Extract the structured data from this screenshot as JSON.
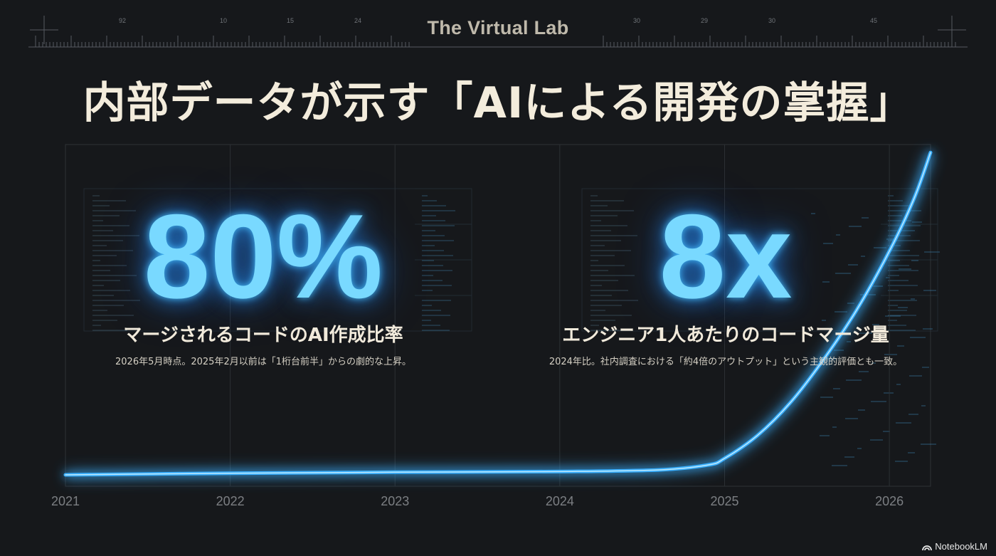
{
  "header": {
    "brand": "The Virtual Lab",
    "ruler_labels_left": [
      "92",
      "10",
      "15",
      "24"
    ],
    "ruler_labels_right": [
      "30",
      "29",
      "30",
      "45"
    ]
  },
  "headline": "内部データが示す「AIによる開発の掌握」",
  "stats": [
    {
      "value": "80%",
      "label": "マージされるコードのAI作成比率",
      "note": "2026年5月時点。2025年2月以前は「1桁台前半」からの劇的な上昇。"
    },
    {
      "value": "8x",
      "label": "エンジニア1人あたりのコードマージ量",
      "note": "2024年比。社内調査における「約4倍のアウトプット」という主観的評価とも一致。"
    }
  ],
  "chart_data": {
    "type": "line",
    "x_ticks": [
      "2021",
      "2022",
      "2023",
      "2024",
      "2025",
      "2026"
    ],
    "xlim": [
      2021,
      2026.25
    ],
    "ylim": [
      0,
      100
    ],
    "grid": true,
    "series": [
      {
        "x": [
          2021,
          2022,
          2023,
          2024,
          2024.6,
          2024.9,
          2025.0,
          2025.2,
          2025.4,
          2025.6,
          2025.8,
          2026.0,
          2026.15,
          2026.25
        ],
        "y": [
          0,
          0.5,
          0.8,
          1,
          1.5,
          3,
          5,
          12,
          22,
          35,
          50,
          68,
          84,
          98
        ]
      }
    ],
    "line_color": "#3ab0ff"
  },
  "watermark": "NotebookLM",
  "colors": {
    "background": "#16181b",
    "accent": "#79d9ff",
    "text": "#f3ecdc"
  }
}
